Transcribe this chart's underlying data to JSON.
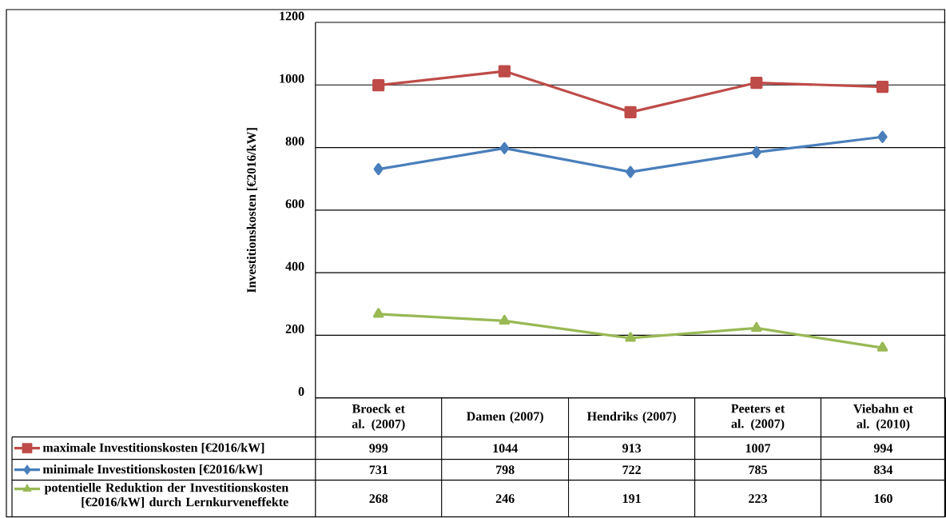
{
  "chart_data": {
    "type": "line",
    "ylabel": "Investitionskosten [€2016/kW]",
    "categories": [
      "Broeck et al. (2007)",
      "Damen (2007)",
      "Hendriks (2007)",
      "Peeters et al. (2007)",
      "Viebahn et al. (2010)"
    ],
    "series": [
      {
        "name": "maximale Investitionskosten [€2016/kW]",
        "color": "#be4b48",
        "marker": "square",
        "values": [
          999,
          1044,
          913,
          1007,
          994
        ]
      },
      {
        "name": "minimale Investitionskosten [€2016/kW]",
        "color": "#4a7ebb",
        "marker": "diamond",
        "values": [
          731,
          798,
          722,
          785,
          834
        ]
      },
      {
        "name": "potentielle Reduktion der Investitionskosten [€2016/kW] durch Lernkurveneffekte",
        "color": "#98b954",
        "marker": "triangle",
        "values": [
          268,
          246,
          191,
          223,
          160
        ]
      }
    ],
    "ylim": [
      0,
      1200
    ],
    "yticks": [
      0,
      200,
      400,
      600,
      800,
      1000,
      1200
    ],
    "grid": "y",
    "legend": "bottom",
    "data_labels": true,
    "line_style": "solid"
  }
}
